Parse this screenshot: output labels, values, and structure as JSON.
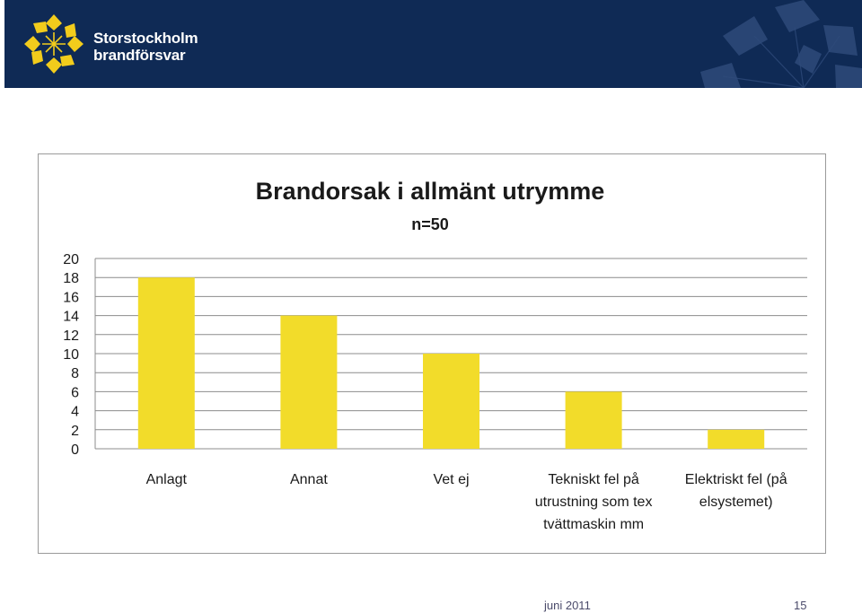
{
  "header": {
    "logo_line1": "Storstockholm",
    "logo_line2": "brandförsvar",
    "background": "#0f2a55",
    "logo_color": "#f2cc1c"
  },
  "chart_data": {
    "type": "bar",
    "title": "Brandorsak i allmänt utrymme",
    "subtitle": "n=50",
    "categories": [
      [
        "Anlagt"
      ],
      [
        "Annat"
      ],
      [
        "Vet ej"
      ],
      [
        "Tekniskt fel på",
        "utrustning som tex",
        "tvättmaskin mm"
      ],
      [
        "Elektriskt fel (på",
        "elsystemet)"
      ]
    ],
    "values": [
      18,
      14,
      10,
      6,
      2
    ],
    "ylim": [
      0,
      20
    ],
    "yticks": [
      "0",
      "2",
      "4",
      "6",
      "8",
      "10",
      "12",
      "14",
      "16",
      "18",
      "20"
    ],
    "grid": true,
    "bar_color": "#f2dc2a",
    "xlabel": "",
    "ylabel": ""
  },
  "footer": {
    "date": "juni 2011",
    "page": "15"
  }
}
